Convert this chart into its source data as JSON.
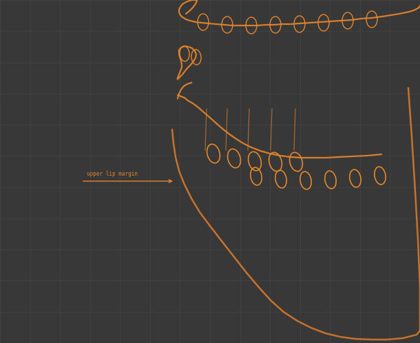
{
  "background_color": "#383838",
  "grid_color": "#474747",
  "grid_alpha": 0.6,
  "grid_linewidth": 0.7,
  "orange_color": "#e8862a",
  "orange_color2": "#d4782a",
  "orange_alpha": 0.95,
  "annotation_text": "upper lip margin",
  "figsize": [
    6.1,
    4.98
  ],
  "dpi": 100
}
